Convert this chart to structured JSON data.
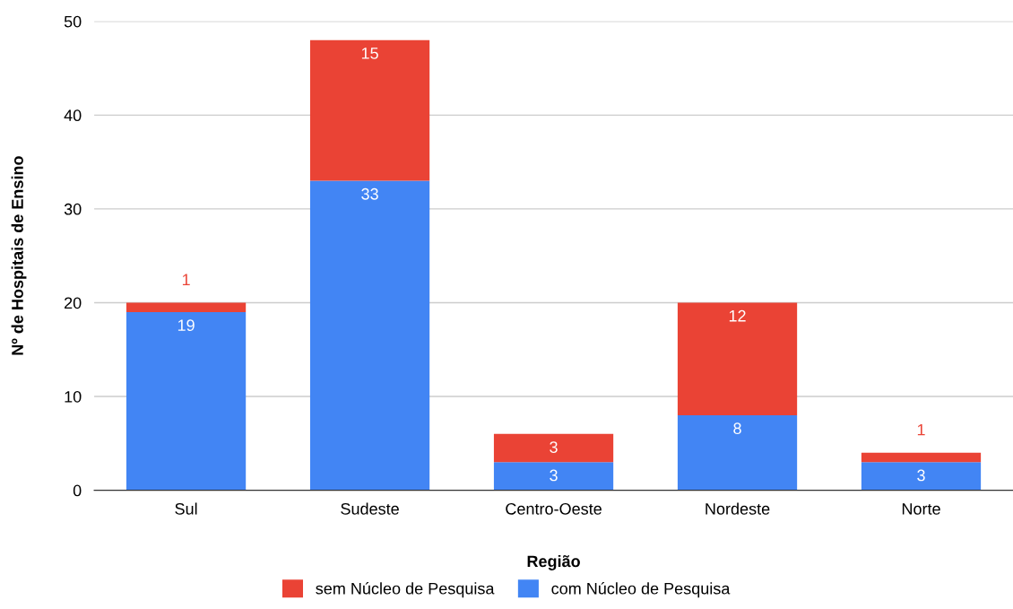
{
  "chart_data": {
    "type": "bar",
    "stacked": true,
    "xlabel": "Região",
    "ylabel": "Nº de Hospitais de Ensino",
    "categories": [
      "Sul",
      "Sudeste",
      "Centro-Oeste",
      "Nordeste",
      "Norte"
    ],
    "series": [
      {
        "name": "com Núcleo de Pesquisa",
        "color": "#4285f4",
        "values": [
          19,
          33,
          3,
          8,
          3
        ]
      },
      {
        "name": "sem Núcleo de Pesquisa",
        "color": "#ea4335",
        "values": [
          1,
          15,
          3,
          12,
          1
        ]
      }
    ],
    "ylim": [
      0,
      50
    ],
    "yticks": [
      0,
      10,
      20,
      30,
      40,
      50
    ],
    "grid": "y",
    "legend": "bottom",
    "data_labels": true
  }
}
